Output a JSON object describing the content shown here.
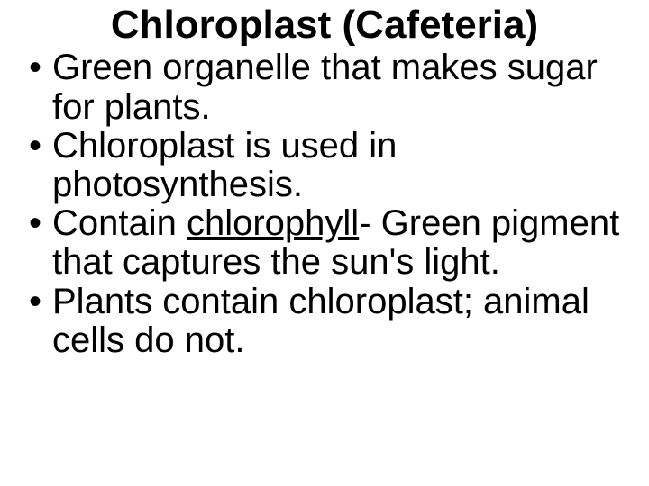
{
  "title": {
    "text": "Chloroplast (Cafeteria)",
    "fontsize": 44,
    "fontweight": "bold",
    "color": "#000000"
  },
  "bullets": {
    "fontsize": 40,
    "color": "#000000",
    "items": [
      {
        "text": "Green organelle that makes sugar for plants."
      },
      {
        "text": "Chloroplast is used in photosynthesis."
      },
      {
        "prefix": "Contain ",
        "underlined": "chlorophyll",
        "suffix": "- Green pigment that captures the sun's light."
      },
      {
        "text": "Plants contain chloroplast; animal cells do not."
      }
    ]
  },
  "background_color": "#ffffff"
}
